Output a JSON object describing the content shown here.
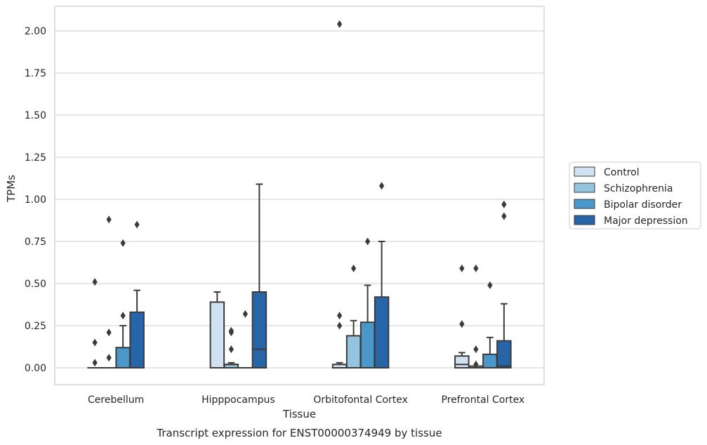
{
  "chart_data": {
    "type": "box",
    "caption": "Transcript expression for ENST00000374949 by tissue",
    "xlabel": "Tissue",
    "ylabel": "TPMs",
    "ylim": [
      -0.1,
      2.15
    ],
    "yticks": [
      "0.00",
      "0.25",
      "0.50",
      "0.75",
      "1.00",
      "1.25",
      "1.50",
      "1.75",
      "2.00"
    ],
    "ytick_values": [
      0,
      0.25,
      0.5,
      0.75,
      1.0,
      1.25,
      1.5,
      1.75,
      2.0
    ],
    "grid": true,
    "legend_position": "right",
    "categories": [
      "Cerebellum",
      "Hipppocampus",
      "Orbitofontal Cortex",
      "Prefrontal Cortex"
    ],
    "series": [
      {
        "name": "Control",
        "color": "#d0e1f2",
        "boxes": [
          {
            "q1": 0,
            "median": 0,
            "q3": 0,
            "whisker_low": 0,
            "whisker_high": 0,
            "outliers": [
              0.03,
              0.15,
              0.51
            ]
          },
          {
            "q1": 0,
            "median": 0,
            "q3": 0.39,
            "whisker_low": 0,
            "whisker_high": 0.45,
            "outliers": []
          },
          {
            "q1": 0,
            "median": 0,
            "q3": 0.02,
            "whisker_low": 0,
            "whisker_high": 0.03,
            "outliers": [
              0.25,
              0.31,
              2.04
            ]
          },
          {
            "q1": 0,
            "median": 0.02,
            "q3": 0.07,
            "whisker_low": 0,
            "whisker_high": 0.09,
            "outliers": [
              0.26,
              0.59
            ]
          }
        ]
      },
      {
        "name": "Schizophrenia",
        "color": "#94c4df",
        "boxes": [
          {
            "q1": 0,
            "median": 0,
            "q3": 0,
            "whisker_low": 0,
            "whisker_high": 0,
            "outliers": [
              0.06,
              0.21,
              0.88
            ]
          },
          {
            "q1": 0,
            "median": 0.02,
            "q3": 0.02,
            "whisker_low": 0,
            "whisker_high": 0.03,
            "outliers": [
              0.11,
              0.21,
              0.22
            ]
          },
          {
            "q1": 0,
            "median": 0,
            "q3": 0.19,
            "whisker_low": 0,
            "whisker_high": 0.28,
            "outliers": [
              0.59
            ]
          },
          {
            "q1": 0,
            "median": 0,
            "q3": 0.01,
            "whisker_low": 0,
            "whisker_high": 0.01,
            "outliers": [
              0.02,
              0.11,
              0.59
            ]
          }
        ]
      },
      {
        "name": "Bipolar disorder",
        "color": "#4a98c9",
        "boxes": [
          {
            "q1": 0,
            "median": 0,
            "q3": 0.12,
            "whisker_low": 0,
            "whisker_high": 0.25,
            "outliers": [
              0.31,
              0.74
            ]
          },
          {
            "q1": 0,
            "median": 0,
            "q3": 0,
            "whisker_low": 0,
            "whisker_high": 0,
            "outliers": [
              0.32
            ]
          },
          {
            "q1": 0,
            "median": 0,
            "q3": 0.27,
            "whisker_low": 0,
            "whisker_high": 0.49,
            "outliers": [
              0.75
            ]
          },
          {
            "q1": 0,
            "median": 0,
            "q3": 0.08,
            "whisker_low": 0,
            "whisker_high": 0.18,
            "outliers": [
              0.49
            ]
          }
        ]
      },
      {
        "name": "Major depression",
        "color": "#2565a8",
        "boxes": [
          {
            "q1": 0,
            "median": 0,
            "q3": 0.33,
            "whisker_low": 0,
            "whisker_high": 0.46,
            "outliers": [
              0.85
            ]
          },
          {
            "q1": 0,
            "median": 0.11,
            "q3": 0.45,
            "whisker_low": 0,
            "whisker_high": 1.09,
            "outliers": []
          },
          {
            "q1": 0,
            "median": 0,
            "q3": 0.42,
            "whisker_low": 0,
            "whisker_high": 0.75,
            "outliers": [
              1.08
            ]
          },
          {
            "q1": 0,
            "median": 0.01,
            "q3": 0.16,
            "whisker_low": 0,
            "whisker_high": 0.38,
            "outliers": [
              0.9,
              0.97
            ]
          }
        ]
      }
    ]
  }
}
